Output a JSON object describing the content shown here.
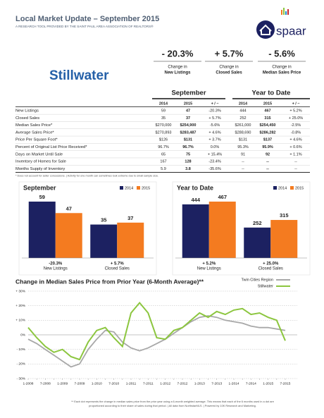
{
  "header": {
    "title": "Local Market Update – September 2015",
    "subtitle": "A RESEARCH TOOL PROVIDED BY THE SAINT PAUL AREA ASSOCIATION OF REALTORS®",
    "logo": "spaar"
  },
  "city": "Stillwater",
  "summary": [
    {
      "value": "- 20.3%",
      "caption": "Change in",
      "metric": "New Listings"
    },
    {
      "value": "+ 5.7%",
      "caption": "Change in",
      "metric": "Closed Sales"
    },
    {
      "value": "- 5.6%",
      "caption": "Change in",
      "metric": "Median Sales Price"
    }
  ],
  "table": {
    "groups": [
      "September",
      "Year to Date"
    ],
    "columns": [
      "2014",
      "2015",
      "+ / –",
      "2014",
      "2015",
      "+ / –"
    ],
    "rows": [
      [
        "New Listings",
        "59",
        "47",
        "-20.3%",
        "444",
        "467",
        "+ 5.2%"
      ],
      [
        "Closed Sales",
        "35",
        "37",
        "+ 5.7%",
        "252",
        "315",
        "+ 25.0%"
      ],
      [
        "Median Sales Price*",
        "$270,000",
        "$254,900",
        "-5.6%",
        "$261,000",
        "$254,450",
        "-2.5%"
      ],
      [
        "Average Sales Price*",
        "$270,893",
        "$283,487",
        "+ 4.6%",
        "$288,690",
        "$286,282",
        "-0.8%"
      ],
      [
        "Price Per Square Foot*",
        "$126",
        "$131",
        "+ 3.7%",
        "$131",
        "$137",
        "+ 4.6%"
      ],
      [
        "Percent of Original List Price Received*",
        "96.7%",
        "96.7%",
        "0.0%",
        "95.3%",
        "95.9%",
        "+ 0.6%"
      ],
      [
        "Days on Market Until Sale",
        "65",
        "75",
        "+ 15.4%",
        "91",
        "92",
        "+ 1.1%"
      ],
      [
        "Inventory of Homes for Sale",
        "167",
        "128",
        "-23.4%",
        "--",
        "--",
        "--"
      ],
      [
        "Months Supply of Inventory",
        "5.9",
        "3.8",
        "-35.6%",
        "--",
        "--",
        "--"
      ]
    ],
    "footnote": "* Does not account for seller concessions. | Activity for one month can sometimes look extreme due to small sample size."
  },
  "chart_data": [
    {
      "type": "bar",
      "title": "September",
      "categories": [
        "New Listings",
        "Closed Sales"
      ],
      "category_changes": [
        "-20.3%",
        "+ 5.7%"
      ],
      "series": [
        {
          "name": "2014",
          "color": "#1c2161",
          "values": [
            59,
            35
          ]
        },
        {
          "name": "2015",
          "color": "#f47b20",
          "values": [
            47,
            37
          ]
        }
      ]
    },
    {
      "type": "bar",
      "title": "Year to Date",
      "categories": [
        "New Listings",
        "Closed Sales"
      ],
      "category_changes": [
        "+ 5.2%",
        "+ 25.0%"
      ],
      "series": [
        {
          "name": "2014",
          "color": "#1c2161",
          "values": [
            444,
            252
          ]
        },
        {
          "name": "2015",
          "color": "#f47b20",
          "values": [
            467,
            315
          ]
        }
      ]
    },
    {
      "type": "line",
      "title": "Change in Median Sales Price from Prior Year (6-Month Average)**",
      "x": [
        "1-2008",
        "4-2008",
        "7-2008",
        "10-2008",
        "1-2009",
        "4-2009",
        "7-2009",
        "10-2009",
        "1-2010",
        "4-2010",
        "7-2010",
        "10-2010",
        "1-2011",
        "4-2011",
        "7-2011",
        "10-2011",
        "1-2012",
        "4-2012",
        "7-2012",
        "10-2012",
        "1-2013",
        "4-2013",
        "7-2013",
        "10-2013",
        "1-2014",
        "4-2014",
        "7-2014",
        "10-2014",
        "1-2015",
        "4-2015",
        "7-2015"
      ],
      "series": [
        {
          "name": "Twin Cities Region",
          "color": "#a8a8a8",
          "values": [
            -3,
            -6,
            -10,
            -14,
            -18,
            -22,
            -20,
            -10,
            -3,
            3,
            2,
            -5,
            -9,
            -11,
            -9,
            -6,
            -3,
            1,
            5,
            9,
            12,
            13,
            12,
            10,
            9,
            8,
            6,
            5,
            5,
            4,
            3
          ]
        },
        {
          "name": "Stillwater",
          "color": "#8cc63f",
          "values": [
            5,
            -2,
            -8,
            -12,
            -10,
            -15,
            -17,
            -5,
            3,
            5,
            -2,
            -8,
            15,
            22,
            15,
            -2,
            -3,
            3,
            5,
            10,
            15,
            12,
            16,
            14,
            17,
            18,
            14,
            15,
            12,
            10,
            -4
          ]
        }
      ],
      "ylim": [
        -30,
        30
      ],
      "yticks": [
        {
          "value": -30,
          "label": "- 30%"
        },
        {
          "value": -20,
          "label": "- 20%"
        },
        {
          "value": -10,
          "label": "- 10%"
        },
        {
          "value": 0,
          "label": "0%"
        },
        {
          "value": 10,
          "label": "+ 10%"
        },
        {
          "value": 20,
          "label": "+ 20%"
        },
        {
          "value": 30,
          "label": "+ 30%"
        }
      ],
      "grid": true
    }
  ],
  "footnote": [
    "** Each dot represents the change in median sales price from the prior year using a 6-month weighted average. This means that each of the 6 months used in a dot are",
    "proportioned according to their share of sales during that period. | All data from NorthstarMLS. | Powered by 10K Research and Marketing."
  ]
}
